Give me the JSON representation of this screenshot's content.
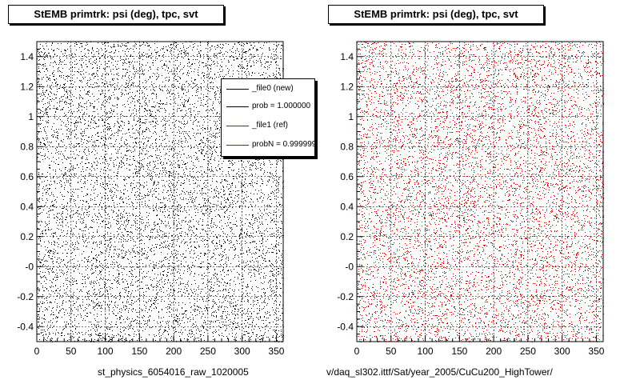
{
  "colors": {
    "new_series": "#000000",
    "ref_series": "#cc0000"
  },
  "chart_data": [
    {
      "type": "scatter",
      "title": "StEMB primtrk: psi (deg), tpc, svt",
      "xlabel": "st_physics_6054016_raw_1020005",
      "ylabel": "",
      "xlim": [
        0,
        360
      ],
      "ylim": [
        -0.5,
        1.5
      ],
      "xticks": [
        "0",
        "50",
        "100",
        "150",
        "200",
        "250",
        "300",
        "350"
      ],
      "yticks": [
        "-0.4",
        "-0.2",
        "-0",
        "0.2",
        "0.4",
        "0.6",
        "0.8",
        "1",
        "1.2",
        "1.4"
      ],
      "grid": true,
      "series": [
        {
          "name": "_file0 (new)",
          "color": "#000000",
          "points": 9000
        }
      ],
      "legend": {
        "placement": "top-right",
        "entries": [
          "_file0 (new)",
          "prob = 1.000000",
          "_file1 (ref)",
          "probN = 0.999999"
        ]
      }
    },
    {
      "type": "scatter",
      "title": "StEMB primtrk: psi (deg), tpc, svt",
      "xlabel": "v/daq_sl302.ittf/Sat/year_2005/CuCu200_HighTower/",
      "ylabel": "",
      "xlim": [
        0,
        360
      ],
      "ylim": [
        -0.5,
        1.5
      ],
      "xticks": [
        "0",
        "50",
        "100",
        "150",
        "200",
        "250",
        "300",
        "350"
      ],
      "yticks": [
        "-0.4",
        "-0.2",
        "-0",
        "0.2",
        "0.4",
        "0.6",
        "0.8",
        "1",
        "1.2",
        "1.4"
      ],
      "grid": true,
      "series": [
        {
          "name": "_file1 (ref)",
          "color": "#cc0000",
          "points": 9000
        }
      ]
    }
  ]
}
